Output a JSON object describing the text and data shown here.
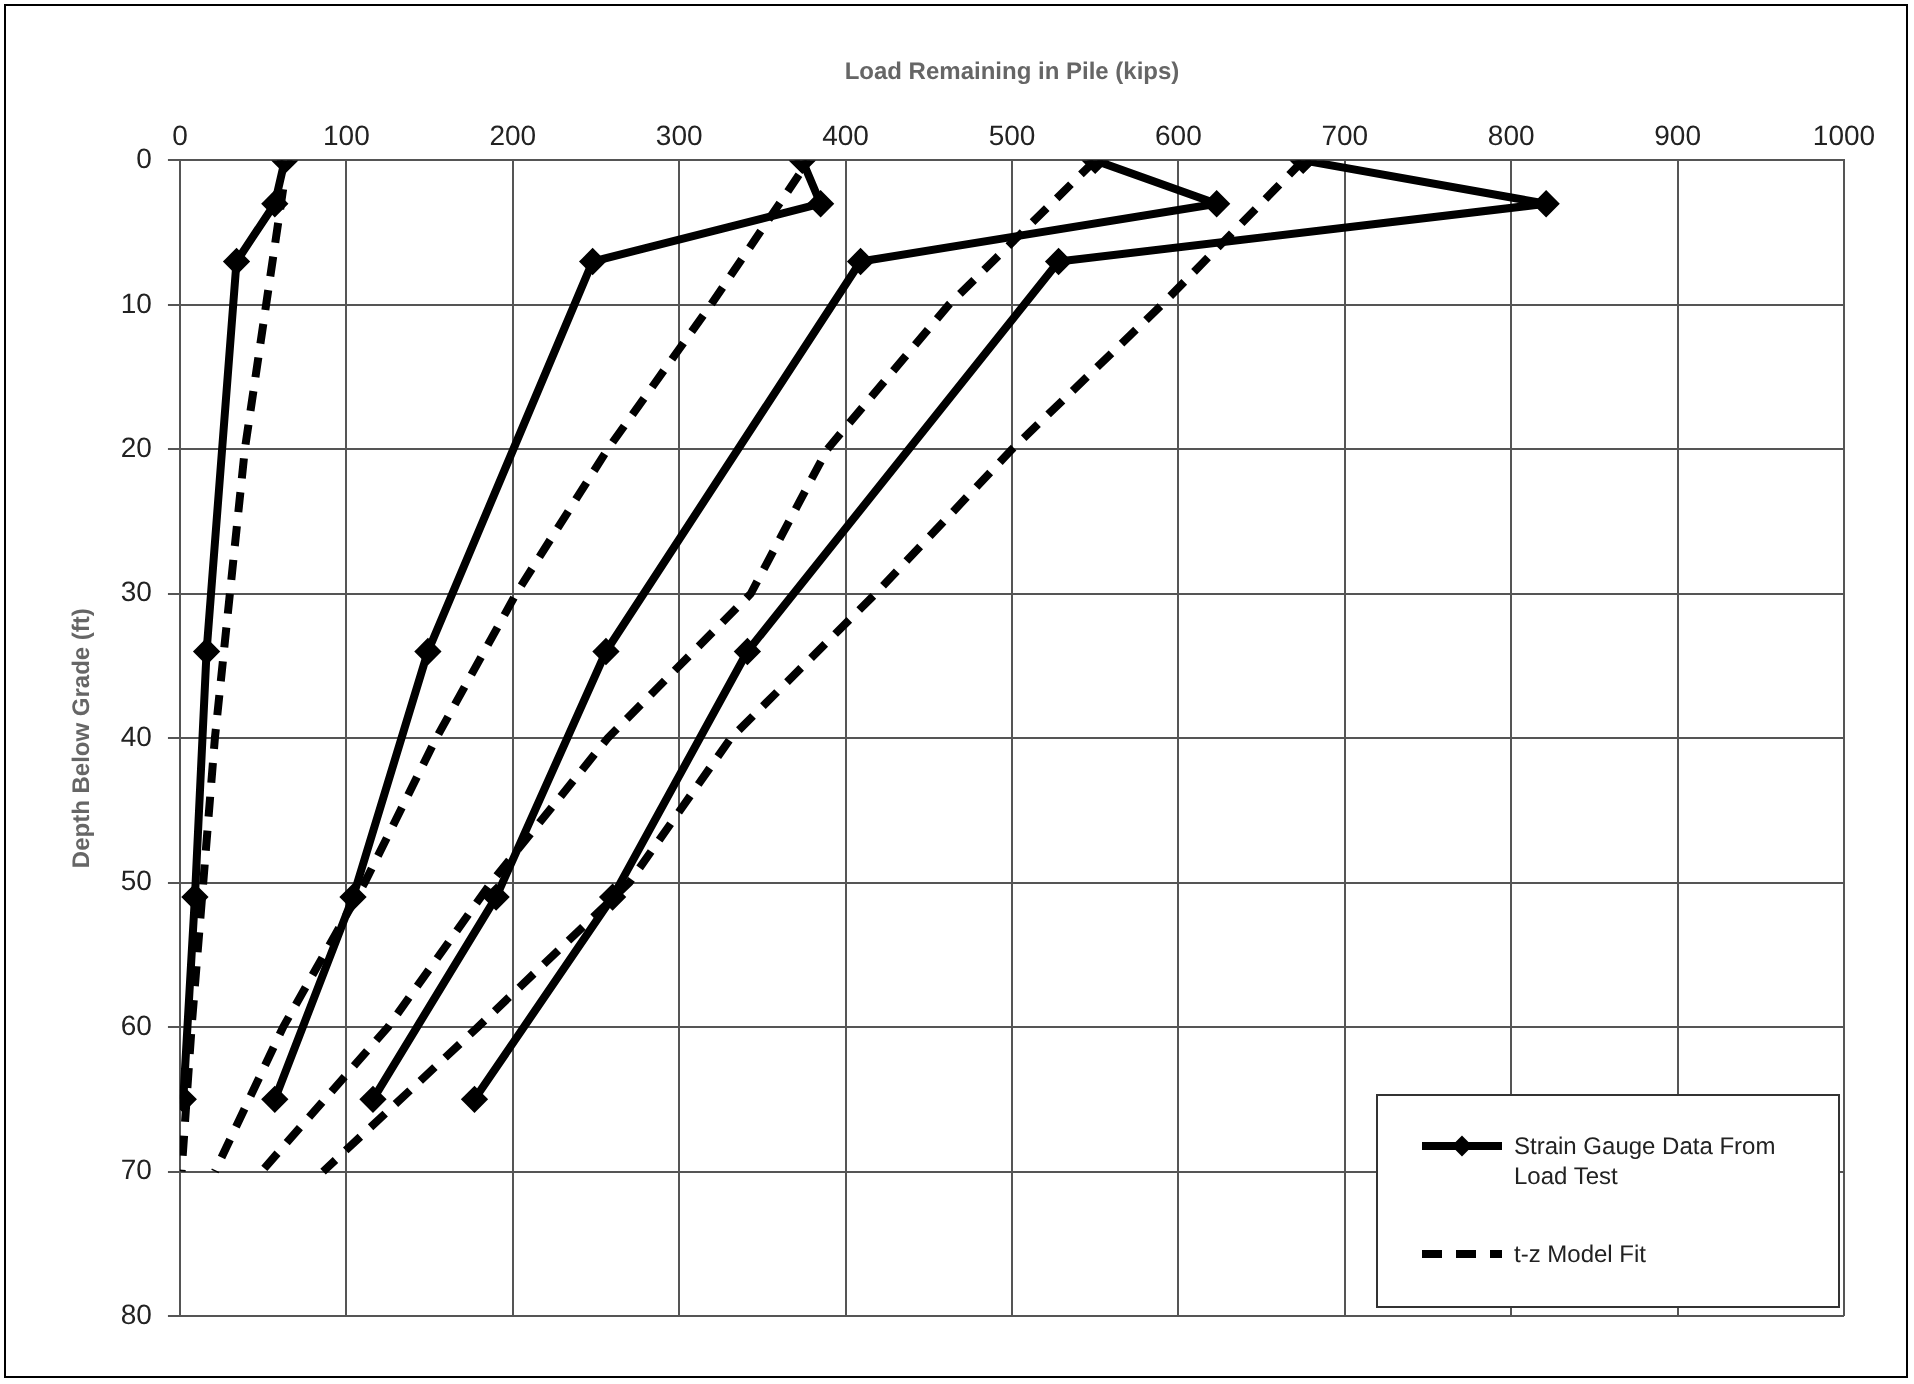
{
  "chart_data": {
    "type": "line",
    "xlabel": "Load Remaining in Pile (kips)",
    "ylabel": "Depth Below Grade (ft)",
    "xlim": [
      0,
      1000
    ],
    "xticks": [
      0,
      100,
      200,
      300,
      400,
      500,
      600,
      700,
      800,
      900,
      1000
    ],
    "ylim": [
      80,
      0
    ],
    "yticks": [
      0,
      10,
      20,
      30,
      40,
      50,
      60,
      70,
      80
    ],
    "grid": true,
    "legend": "bottom right",
    "series": [
      {
        "name": "Strain Gauge Data From Load Test",
        "color": "#000000",
        "marker": "diamond",
        "line_style": "solid",
        "x": [
          63,
          57,
          34,
          16,
          9,
          2
        ],
        "values": [
          0,
          3,
          7,
          34,
          51,
          65
        ]
      },
      {
        "color": "#000000",
        "marker": "diamond",
        "line_style": "solid",
        "x": [
          374,
          385,
          248,
          149,
          104,
          57
        ],
        "values": [
          0,
          3,
          7,
          34,
          51,
          65
        ]
      },
      {
        "color": "#000000",
        "marker": "diamond",
        "line_style": "solid",
        "x": [
          550,
          623,
          409,
          256,
          190,
          116
        ],
        "values": [
          0,
          3,
          7,
          34,
          51,
          65
        ]
      },
      {
        "color": "#000000",
        "marker": "diamond",
        "line_style": "solid",
        "x": [
          675,
          821,
          528,
          341,
          260,
          177
        ],
        "values": [
          0,
          3,
          7,
          34,
          51,
          65
        ]
      },
      {
        "name": "t-z Model Fit",
        "color": "#000000",
        "marker": "none",
        "line_style": "dashed",
        "x": [
          62,
          39,
          21,
          14,
          7,
          1
        ],
        "values": [
          2,
          20,
          40,
          50,
          60,
          70
        ]
      },
      {
        "color": "#000000",
        "marker": "none",
        "line_style": "dashed",
        "x": [
          372,
          319,
          257,
          202,
          154,
          111,
          62,
          21
        ],
        "values": [
          1,
          10,
          20,
          30,
          40,
          50,
          60,
          70
        ]
      },
      {
        "color": "#000000",
        "marker": "none",
        "line_style": "dashed",
        "x": [
          550,
          462,
          389,
          343,
          257,
          187,
          125,
          49
        ],
        "values": [
          0,
          10,
          20,
          30,
          40,
          50,
          60,
          70
        ]
      },
      {
        "color": "#000000",
        "marker": "none",
        "line_style": "dashed",
        "x": [
          675,
          590,
          500,
          418,
          331,
          270,
          179,
          86
        ],
        "values": [
          0,
          10,
          20,
          30,
          40,
          50,
          60,
          70
        ]
      }
    ]
  }
}
